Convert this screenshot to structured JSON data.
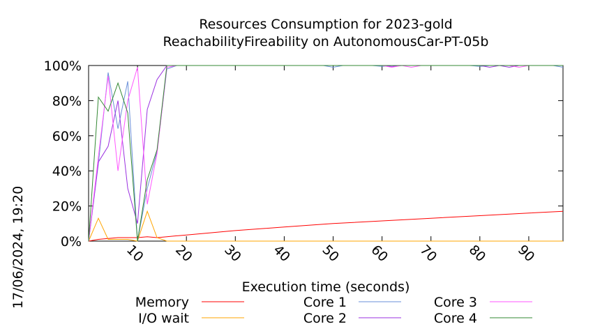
{
  "chart_data": {
    "type": "line",
    "title": [
      "Resources Consumption for 2023-gold",
      "ReachabilityFireability on AutonomousCar-PT-05b"
    ],
    "xlabel": "Execution time (seconds)",
    "ylabel": "",
    "timestamp": "17/06/2024, 19:20",
    "xlim": [
      0,
      97
    ],
    "ylim": [
      0,
      100
    ],
    "xticks": [
      10,
      20,
      30,
      40,
      50,
      60,
      70,
      80,
      90
    ],
    "xtick_labels": [
      "10",
      "20",
      "30",
      "40",
      "50",
      "60",
      "70",
      "80",
      "90"
    ],
    "yticks": [
      0,
      20,
      40,
      60,
      80,
      100
    ],
    "ytick_labels": [
      "0%",
      "20%",
      "40%",
      "60%",
      "80%",
      "100%"
    ],
    "grid": false,
    "legend_position": "bottom",
    "series": [
      {
        "name": "Memory",
        "color": "#ff0000",
        "points": [
          [
            0,
            0
          ],
          [
            2,
            1
          ],
          [
            4,
            1.5
          ],
          [
            6,
            2
          ],
          [
            8,
            2
          ],
          [
            10,
            2
          ],
          [
            12,
            2.5
          ],
          [
            14,
            2
          ],
          [
            16,
            2.5
          ],
          [
            18,
            3
          ],
          [
            20,
            3.5
          ],
          [
            30,
            6
          ],
          [
            40,
            8
          ],
          [
            50,
            10
          ],
          [
            60,
            11.5
          ],
          [
            70,
            13
          ],
          [
            80,
            14.5
          ],
          [
            90,
            16
          ],
          [
            97,
            17
          ]
        ]
      },
      {
        "name": "I/O wait",
        "color": "#ffa500",
        "points": [
          [
            0,
            0
          ],
          [
            2,
            13
          ],
          [
            4,
            1
          ],
          [
            6,
            1
          ],
          [
            8,
            1
          ],
          [
            10,
            0
          ],
          [
            12,
            17
          ],
          [
            14,
            2
          ],
          [
            16,
            0
          ],
          [
            18,
            0
          ],
          [
            97,
            0
          ]
        ]
      },
      {
        "name": "Core 1",
        "color": "#6a8fd8",
        "points": [
          [
            0,
            0
          ],
          [
            2,
            44
          ],
          [
            4,
            96
          ],
          [
            6,
            64
          ],
          [
            8,
            91
          ],
          [
            10,
            0
          ],
          [
            12,
            30
          ],
          [
            14,
            51
          ],
          [
            16,
            98
          ],
          [
            18,
            100
          ],
          [
            48,
            100
          ],
          [
            50,
            99
          ],
          [
            52,
            100
          ],
          [
            58,
            100
          ],
          [
            60,
            99.5
          ],
          [
            62,
            100
          ],
          [
            78,
            100
          ],
          [
            80,
            99.5
          ],
          [
            82,
            100
          ],
          [
            95,
            100
          ],
          [
            97,
            99
          ]
        ]
      },
      {
        "name": "Core 2",
        "color": "#9a30e0",
        "points": [
          [
            0,
            0
          ],
          [
            2,
            45
          ],
          [
            4,
            54
          ],
          [
            6,
            80
          ],
          [
            8,
            30
          ],
          [
            10,
            10
          ],
          [
            12,
            75
          ],
          [
            14,
            92
          ],
          [
            16,
            100
          ],
          [
            18,
            100
          ],
          [
            60,
            100
          ],
          [
            62,
            99.5
          ],
          [
            64,
            100
          ],
          [
            80,
            100
          ],
          [
            82,
            99
          ],
          [
            84,
            100
          ],
          [
            86,
            99
          ],
          [
            88,
            100
          ],
          [
            97,
            100
          ]
        ]
      },
      {
        "name": "Core 3",
        "color": "#ff55ff",
        "points": [
          [
            0,
            0
          ],
          [
            2,
            48
          ],
          [
            4,
            94
          ],
          [
            6,
            40
          ],
          [
            8,
            80
          ],
          [
            10,
            99
          ],
          [
            12,
            21
          ],
          [
            14,
            50
          ],
          [
            16,
            99
          ],
          [
            18,
            100
          ],
          [
            60,
            100
          ],
          [
            62,
            99
          ],
          [
            64,
            100
          ],
          [
            66,
            99
          ],
          [
            68,
            100
          ],
          [
            86,
            100
          ],
          [
            88,
            99
          ],
          [
            90,
            100
          ],
          [
            97,
            100
          ]
        ]
      },
      {
        "name": "Core 4",
        "color": "#338833",
        "points": [
          [
            0,
            0
          ],
          [
            2,
            82
          ],
          [
            4,
            74
          ],
          [
            6,
            90
          ],
          [
            8,
            73
          ],
          [
            10,
            0
          ],
          [
            12,
            35
          ],
          [
            14,
            52
          ],
          [
            16,
            100
          ],
          [
            18,
            100
          ],
          [
            97,
            100
          ]
        ]
      }
    ]
  }
}
